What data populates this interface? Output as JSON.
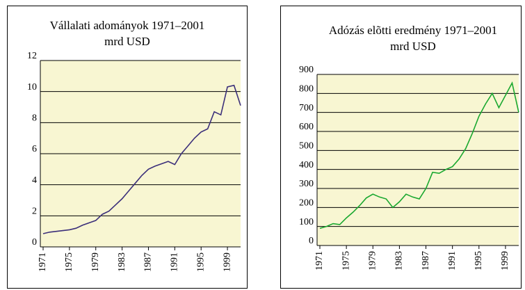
{
  "chart_data": [
    {
      "type": "line",
      "title": "Vállalati adományok 1971–2001",
      "subtitle": "mrd USD",
      "x": [
        1971,
        1972,
        1973,
        1974,
        1975,
        1976,
        1977,
        1978,
        1979,
        1980,
        1981,
        1982,
        1983,
        1984,
        1985,
        1986,
        1987,
        1988,
        1989,
        1990,
        1991,
        1992,
        1993,
        1994,
        1995,
        1996,
        1997,
        1998,
        1999,
        2000,
        2001
      ],
      "series": [
        {
          "name": "Vállalati adományok",
          "color": "#3b2f7a",
          "values": [
            0.85,
            0.95,
            1.0,
            1.05,
            1.1,
            1.2,
            1.4,
            1.55,
            1.7,
            2.1,
            2.3,
            2.7,
            3.1,
            3.6,
            4.1,
            4.6,
            5.0,
            5.2,
            5.35,
            5.5,
            5.3,
            6.0,
            6.5,
            7.0,
            7.4,
            7.6,
            8.7,
            8.5,
            10.3,
            10.4,
            9.1
          ]
        }
      ],
      "xlim": [
        1971,
        2001
      ],
      "xticks": [
        1971,
        1975,
        1979,
        1983,
        1987,
        1991,
        1995,
        1999
      ],
      "ylim": [
        0,
        12
      ],
      "yticks": [
        0,
        2,
        4,
        6,
        8,
        10,
        12
      ],
      "grid": true
    },
    {
      "type": "line",
      "title": "Adózás elõtti eredmény 1971–2001",
      "subtitle": "mrd USD",
      "x": [
        1971,
        1972,
        1973,
        1974,
        1975,
        1976,
        1977,
        1978,
        1979,
        1980,
        1981,
        1982,
        1983,
        1984,
        1985,
        1986,
        1987,
        1988,
        1989,
        1990,
        1991,
        1992,
        1993,
        1994,
        1995,
        1996,
        1997,
        1998,
        1999,
        2000,
        2001
      ],
      "series": [
        {
          "name": "Adózás elõtti eredmény",
          "color": "#1aa830",
          "values": [
            90,
            100,
            115,
            110,
            145,
            175,
            210,
            250,
            270,
            255,
            245,
            200,
            230,
            270,
            255,
            245,
            300,
            385,
            380,
            400,
            415,
            455,
            510,
            590,
            680,
            745,
            800,
            725,
            790,
            855,
            700
          ]
        }
      ],
      "xlim": [
        1971,
        2001
      ],
      "xticks": [
        1971,
        1975,
        1979,
        1983,
        1987,
        1991,
        1995,
        1999
      ],
      "ylim": [
        0,
        900
      ],
      "yticks": [
        0,
        100,
        200,
        300,
        400,
        500,
        600,
        700,
        800,
        900
      ],
      "grid": true
    }
  ]
}
